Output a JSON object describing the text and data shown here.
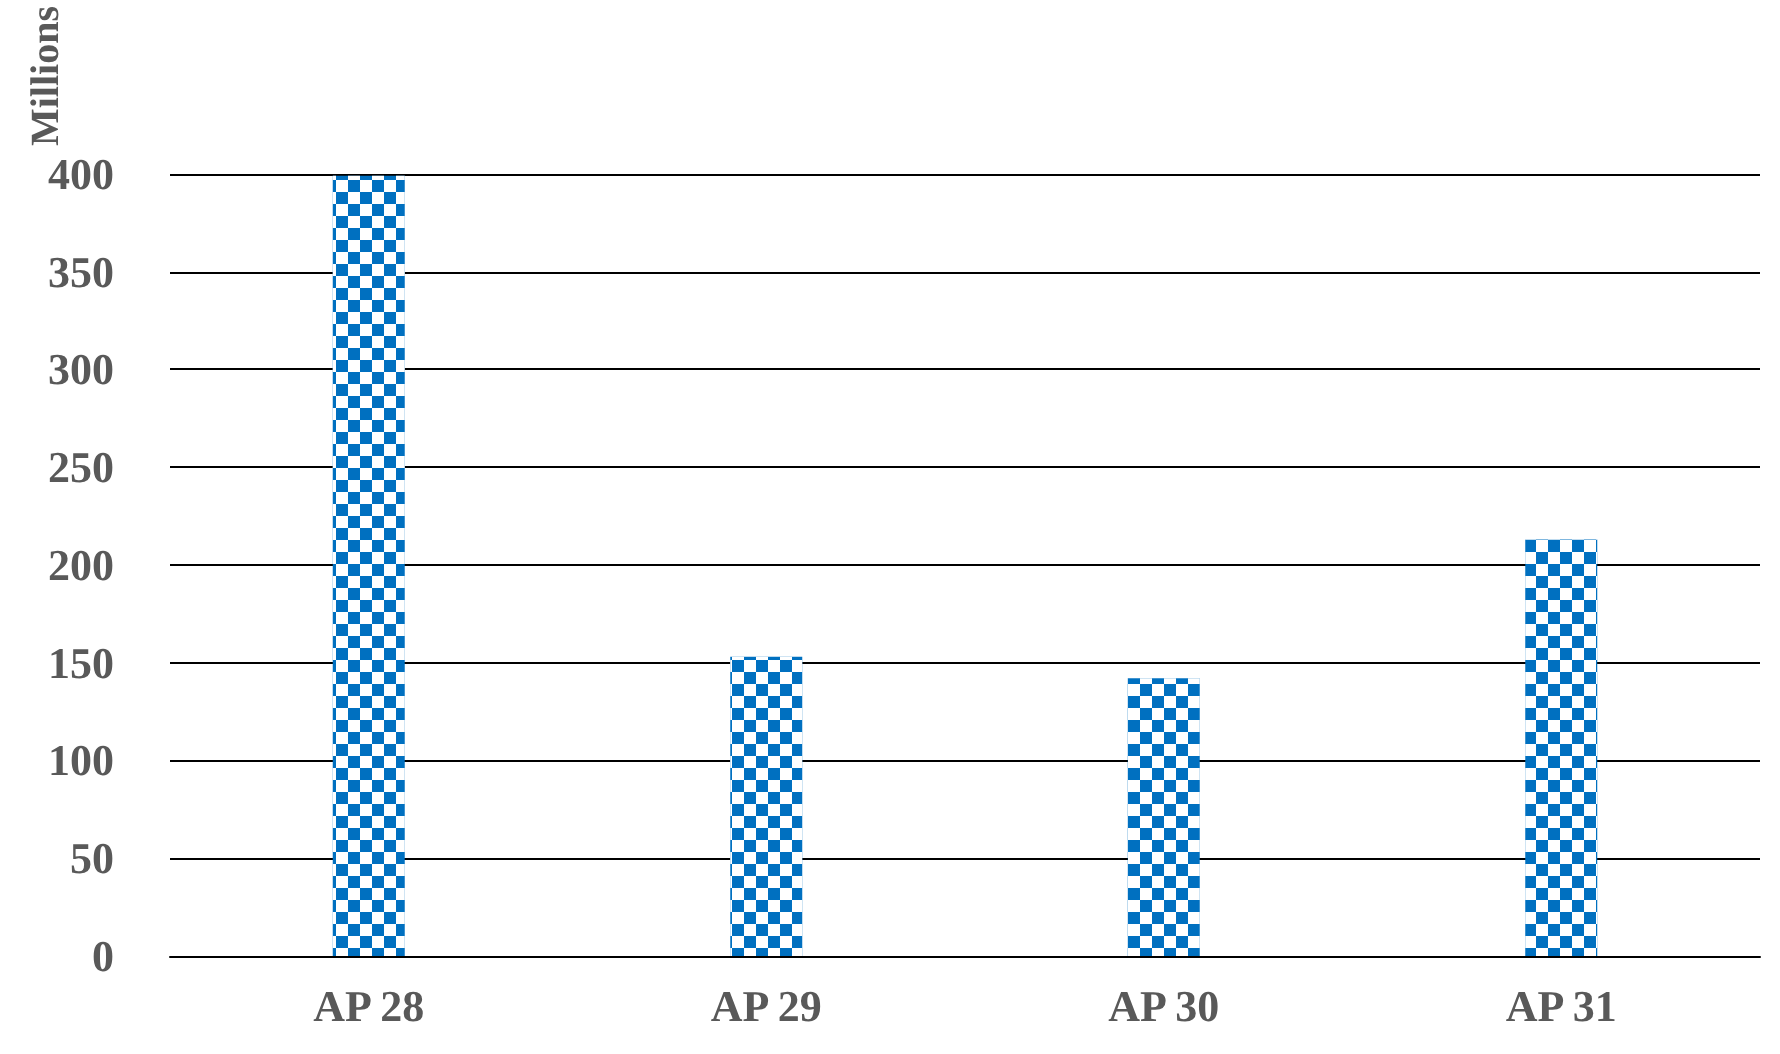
{
  "chart_data": {
    "type": "bar",
    "ylabel": "Millions",
    "categories": [
      "AP 28",
      "AP 29",
      "AP 30",
      "AP 31"
    ],
    "values": [
      399,
      153,
      142,
      213
    ],
    "color": "#0070c0",
    "ylim": [
      0,
      400
    ],
    "yticks": [
      0,
      50,
      100,
      150,
      200,
      250,
      300,
      350,
      400
    ],
    "grid": "y"
  }
}
